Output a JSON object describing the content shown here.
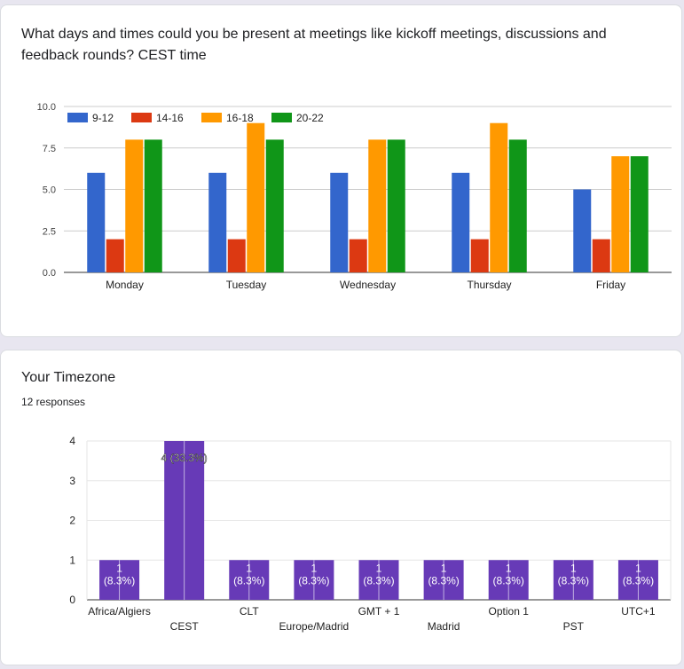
{
  "card1": {
    "title": "What days and times could you be present at meetings like kickoff meetings, discussions and feedback rounds? CEST time"
  },
  "card2": {
    "title": "Your Timezone",
    "responses": "12 responses"
  },
  "chart_data": [
    {
      "type": "bar",
      "categories": [
        "Monday",
        "Tuesday",
        "Wednesday",
        "Thursday",
        "Friday"
      ],
      "series": [
        {
          "name": "9-12",
          "color": "#3366cc",
          "values": [
            6,
            6,
            6,
            6,
            5
          ]
        },
        {
          "name": "14-16",
          "color": "#dc3912",
          "values": [
            2,
            2,
            2,
            2,
            2
          ]
        },
        {
          "name": "16-18",
          "color": "#ff9900",
          "values": [
            8,
            9,
            8,
            9,
            7
          ]
        },
        {
          "name": "20-22",
          "color": "#109618",
          "values": [
            8,
            8,
            8,
            8,
            7
          ]
        }
      ],
      "yticks": [
        "0.0",
        "2.5",
        "5.0",
        "7.5",
        "10.0"
      ],
      "ylim": [
        0,
        10
      ],
      "legend": "top-left",
      "grid": true
    },
    {
      "type": "bar",
      "categories": [
        "Africa/Algiers",
        "CEST",
        "CLT",
        "Europe/Madrid",
        "GMT + 1",
        "Madrid",
        "Option 1",
        "PST",
        "UTC+1"
      ],
      "values": [
        1,
        4,
        1,
        1,
        1,
        1,
        1,
        1,
        1
      ],
      "labels": [
        "1 (8.3%)",
        "4 (33.3%)",
        "1 (8.3%)",
        "1 (8.3%)",
        "1 (8.3%)",
        "1 (8.3%)",
        "1 (8.3%)",
        "1 (8.3%)",
        "1 (8.3%)"
      ],
      "color": "#673ab7",
      "yticks": [
        "0",
        "1",
        "2",
        "3",
        "4"
      ],
      "ylim": [
        0,
        4
      ],
      "grid": true
    }
  ]
}
